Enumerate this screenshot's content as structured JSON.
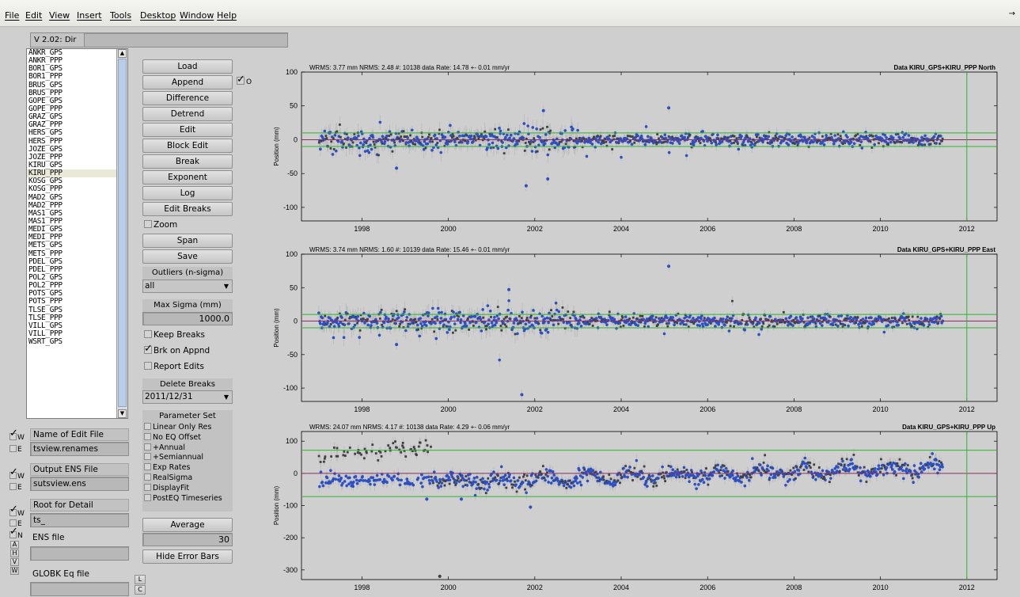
{
  "menubar": {
    "items": [
      "File",
      "Edit",
      "View",
      "Insert",
      "Tools",
      "Desktop",
      "Window",
      "Help"
    ],
    "arrow": "→"
  },
  "version": {
    "label": "V 2.02: Dir",
    "value": ""
  },
  "station_list": {
    "items": [
      "ANKR_GPS",
      "ANKR_PPP",
      "BOR1_GPS",
      "BOR1_PPP",
      "BRUS_GPS",
      "BRUS_PPP",
      "GOPE_GPS",
      "GOPE_PPP",
      "GRAZ_GPS",
      "GRAZ_PPP",
      "HERS_GPS",
      "HERS_PPP",
      "JOZE_GPS",
      "JOZE_PPP",
      "KIRU_GPS",
      "KIRU_PPP",
      "KOSG_GPS",
      "KOSG_PPP",
      "MAD2_GPS",
      "MAD2_PPP",
      "MAS1_GPS",
      "MAS1_PPP",
      "MEDI_GPS",
      "MEDI_PPP",
      "METS_GPS",
      "METS_PPP",
      "PDEL_GPS",
      "PDEL_PPP",
      "POL2_GPS",
      "POL2_PPP",
      "POTS_GPS",
      "POTS_PPP",
      "TLSE_GPS",
      "TLSE_PPP",
      "VILL_GPS",
      "VILL_PPP",
      "WSRT_GPS"
    ],
    "selected_index": 15
  },
  "buttons": {
    "load": "Load",
    "append": "Append",
    "append_option": "O",
    "difference": "Difference",
    "detrend": "Detrend",
    "edit": "Edit",
    "block_edit": "Block Edit",
    "break": "Break",
    "exponent": "Exponent",
    "log": "Log",
    "edit_breaks": "Edit Breaks",
    "zoom": "Zoom",
    "span": "Span",
    "save": "Save",
    "average": "Average",
    "hide_error_bars": "Hide Error Bars"
  },
  "outliers": {
    "label": "Outliers (n-sigma)",
    "value": "all"
  },
  "max_sigma": {
    "label": "Max Sigma (mm)",
    "value": "1000.0"
  },
  "checkboxes": {
    "keep_breaks": "Keep Breaks",
    "brk_on_appnd": "Brk on Appnd",
    "report_edits": "Report Edits"
  },
  "delete_breaks": {
    "label": "Delete Breaks",
    "value": "2011/12/31"
  },
  "parameter_set": {
    "title": "Parameter Set",
    "items": [
      "Linear Only Res",
      "No EQ Offset",
      "+Annual",
      "+Semiannual",
      "Exp Rates",
      "RealSigma",
      "DisplayFit",
      "PostEQ Timeseries"
    ]
  },
  "average_value": "30",
  "left_controls": {
    "edit_file": {
      "label": "Name of Edit File",
      "value": "tsview.renames",
      "w": "W",
      "e": "E"
    },
    "output_ens": {
      "label": "Output ENS File",
      "value": "sutsview.ens",
      "w": "W",
      "e": "E"
    },
    "root_detail": {
      "label": "Root for Detail",
      "value": "ts_",
      "w": "W",
      "e": "E"
    },
    "ens_file": {
      "label": "ENS file",
      "value": "",
      "n": "N",
      "a": "A",
      "h": "H",
      "v": "V",
      "wbtn": "W"
    },
    "globk_eq": {
      "label": "GLOBK Eq file",
      "value": "",
      "l": "L",
      "c": "C"
    }
  },
  "plots": [
    {
      "stats": "WRMS:   3.77 mm NRMS:  2.48 #: 10138 data  Rate:   14.78 +-   0.01 mm/yr",
      "title": "Data KIRU_GPS+KIRU_PPP North",
      "ylabel": "Position (mm)",
      "yticks": [
        "100",
        "50",
        "0",
        "-50",
        "-100"
      ],
      "xticks": [
        "1998",
        "2000",
        "2002",
        "2004",
        "2006",
        "2008",
        "2010",
        "2012"
      ]
    },
    {
      "stats": "WRMS:   3.74 mm NRMS:  1.60 #: 10139 data  Rate:   15.46 +-   0.01 mm/yr",
      "title": "Data KIRU_GPS+KIRU_PPP East",
      "ylabel": "Position (mm)",
      "yticks": [
        "100",
        "50",
        "0",
        "-50",
        "-100"
      ],
      "xticks": [
        "1998",
        "2000",
        "2002",
        "2004",
        "2006",
        "2008",
        "2010",
        "2012"
      ]
    },
    {
      "stats": "WRMS:  24.07 mm NRMS:  4.17 #: 10138 data  Rate:    4.29 +-   0.06 mm/yr",
      "title": "Data KIRU_GPS+KIRU_PPP Up",
      "ylabel": "Position (mm)",
      "yticks": [
        "100",
        "0",
        "-100",
        "-200",
        "-300"
      ],
      "xticks": [
        "1998",
        "2000",
        "2002",
        "2004",
        "2006",
        "2008",
        "2010",
        "2012"
      ]
    }
  ],
  "colors": {
    "series_blue": "#2b4fc4",
    "series_gray": "#404040",
    "error_bars": "#b9b9b9",
    "fit_line": "#2fb52f",
    "zero_line": "#8a2e62"
  }
}
